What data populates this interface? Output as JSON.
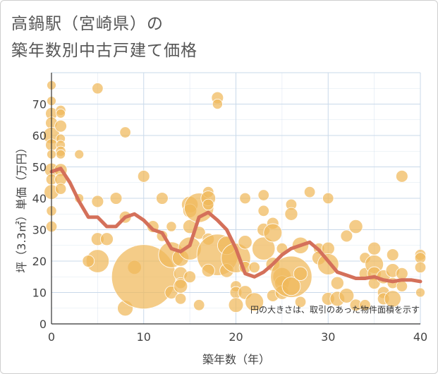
{
  "page": {
    "title_line1": "高鍋駅（宮崎県）の",
    "title_line2": "築年数別中古戸建て価格"
  },
  "chart_data": {
    "type": "scatter",
    "title": "高鍋駅（宮崎県）の築年数別中古戸建て価格",
    "xlabel": "築年数（年）",
    "ylabel": "坪（3.3㎡）単価（万円）",
    "xlim": [
      0,
      40
    ],
    "ylim": [
      0,
      80
    ],
    "xticks": [
      0,
      10,
      20,
      30,
      40
    ],
    "yticks": [
      0,
      10,
      20,
      30,
      40,
      50,
      60,
      70
    ],
    "grid": true,
    "note": "円の大きさは、取引のあった物件面積を示す",
    "colors": {
      "bubble": "#f0b85a",
      "line": "#d4705a",
      "grid": "#c9d9ea"
    },
    "points": [
      {
        "x": 0,
        "y": 76,
        "s": 1
      },
      {
        "x": 0,
        "y": 71,
        "s": 1
      },
      {
        "x": 0,
        "y": 67,
        "s": 1.3
      },
      {
        "x": 0,
        "y": 64,
        "s": 1.3
      },
      {
        "x": 0,
        "y": 60,
        "s": 1.8
      },
      {
        "x": 0,
        "y": 57,
        "s": 1.3
      },
      {
        "x": 0,
        "y": 54,
        "s": 1
      },
      {
        "x": 0,
        "y": 49,
        "s": 1.5
      },
      {
        "x": 0,
        "y": 46,
        "s": 1.2
      },
      {
        "x": 0,
        "y": 42,
        "s": 1.6
      },
      {
        "x": 0,
        "y": 36,
        "s": 1.1
      },
      {
        "x": 0,
        "y": 31,
        "s": 1.2
      },
      {
        "x": 1,
        "y": 68,
        "s": 1.1
      },
      {
        "x": 1,
        "y": 67,
        "s": 1
      },
      {
        "x": 1,
        "y": 63,
        "s": 1.3
      },
      {
        "x": 1,
        "y": 59,
        "s": 1
      },
      {
        "x": 1,
        "y": 57,
        "s": 1
      },
      {
        "x": 1,
        "y": 55,
        "s": 1.1
      },
      {
        "x": 1,
        "y": 54,
        "s": 1
      },
      {
        "x": 1,
        "y": 49,
        "s": 1.4
      },
      {
        "x": 1,
        "y": 46,
        "s": 1.3
      },
      {
        "x": 1,
        "y": 43,
        "s": 1.2
      },
      {
        "x": 3,
        "y": 54,
        "s": 1
      },
      {
        "x": 3,
        "y": 40,
        "s": 1
      },
      {
        "x": 5,
        "y": 75,
        "s": 1.2
      },
      {
        "x": 5,
        "y": 39,
        "s": 1.3
      },
      {
        "x": 5,
        "y": 27,
        "s": 1.4
      },
      {
        "x": 5,
        "y": 20,
        "s": 2.5
      },
      {
        "x": 4,
        "y": 20,
        "s": 1.3
      },
      {
        "x": 6,
        "y": 27,
        "s": 1.4
      },
      {
        "x": 7,
        "y": 40,
        "s": 1.3
      },
      {
        "x": 8,
        "y": 61,
        "s": 1.2
      },
      {
        "x": 8,
        "y": 34,
        "s": 1.3
      },
      {
        "x": 9,
        "y": 18,
        "s": 1.5
      },
      {
        "x": 8,
        "y": 5,
        "s": 1.7
      },
      {
        "x": 10,
        "y": 47,
        "s": 1.3
      },
      {
        "x": 10,
        "y": 15,
        "s": 7
      },
      {
        "x": 11,
        "y": 31,
        "s": 1.3
      },
      {
        "x": 12,
        "y": 40,
        "s": 1.3
      },
      {
        "x": 12,
        "y": 28,
        "s": 1.2
      },
      {
        "x": 13,
        "y": 31,
        "s": 1.1
      },
      {
        "x": 13,
        "y": 22,
        "s": 2.8
      },
      {
        "x": 13,
        "y": 10,
        "s": 1.4
      },
      {
        "x": 14,
        "y": 21,
        "s": 1.8
      },
      {
        "x": 14,
        "y": 16,
        "s": 1.5
      },
      {
        "x": 14,
        "y": 13,
        "s": 1.2
      },
      {
        "x": 14,
        "y": 12,
        "s": 1.5
      },
      {
        "x": 14,
        "y": 8,
        "s": 1.2
      },
      {
        "x": 15,
        "y": 38,
        "s": 1.8
      },
      {
        "x": 15,
        "y": 36,
        "s": 1.5
      },
      {
        "x": 15,
        "y": 31,
        "s": 1.5
      },
      {
        "x": 15,
        "y": 24,
        "s": 2.5
      },
      {
        "x": 15,
        "y": 15,
        "s": 1.3
      },
      {
        "x": 16,
        "y": 37,
        "s": 3.2
      },
      {
        "x": 16,
        "y": 29,
        "s": 1.4
      },
      {
        "x": 16,
        "y": 6,
        "s": 1.2
      },
      {
        "x": 17,
        "y": 42,
        "s": 1.2
      },
      {
        "x": 17,
        "y": 40,
        "s": 1.6
      },
      {
        "x": 17,
        "y": 38,
        "s": 1.2
      },
      {
        "x": 17,
        "y": 27,
        "s": 1.3
      },
      {
        "x": 18,
        "y": 72,
        "s": 1.3
      },
      {
        "x": 18,
        "y": 70,
        "s": 1.1
      },
      {
        "x": 18,
        "y": 22,
        "s": 4.5
      },
      {
        "x": 17,
        "y": 17,
        "s": 1.4
      },
      {
        "x": 19,
        "y": 25,
        "s": 2
      },
      {
        "x": 19,
        "y": 17,
        "s": 1.5
      },
      {
        "x": 20,
        "y": 21,
        "s": 3.2
      },
      {
        "x": 20,
        "y": 12,
        "s": 1.2
      },
      {
        "x": 20,
        "y": 10,
        "s": 1.3
      },
      {
        "x": 20,
        "y": 6,
        "s": 1.6
      },
      {
        "x": 21,
        "y": 40,
        "s": 1.2
      },
      {
        "x": 21,
        "y": 26,
        "s": 1.5
      },
      {
        "x": 21,
        "y": 18,
        "s": 1.3
      },
      {
        "x": 21,
        "y": 10,
        "s": 1.5
      },
      {
        "x": 22,
        "y": 18,
        "s": 1.2
      },
      {
        "x": 22,
        "y": 7,
        "s": 2
      },
      {
        "x": 23,
        "y": 41,
        "s": 1.2
      },
      {
        "x": 23,
        "y": 36,
        "s": 1.2
      },
      {
        "x": 23,
        "y": 30,
        "s": 1.4
      },
      {
        "x": 23,
        "y": 24,
        "s": 2.5
      },
      {
        "x": 24,
        "y": 32,
        "s": 1.3
      },
      {
        "x": 24,
        "y": 29,
        "s": 2
      },
      {
        "x": 24,
        "y": 19,
        "s": 1.5
      },
      {
        "x": 24,
        "y": 9,
        "s": 1.3
      },
      {
        "x": 25,
        "y": 24,
        "s": 1.2
      },
      {
        "x": 25,
        "y": 15,
        "s": 2
      },
      {
        "x": 25,
        "y": 13,
        "s": 1.6
      },
      {
        "x": 25,
        "y": 10,
        "s": 1.5
      },
      {
        "x": 26,
        "y": 38,
        "s": 1.2
      },
      {
        "x": 26,
        "y": 35,
        "s": 1.4
      },
      {
        "x": 26,
        "y": 15,
        "s": 4.5
      },
      {
        "x": 26,
        "y": 12,
        "s": 2
      },
      {
        "x": 27,
        "y": 25,
        "s": 1.8
      },
      {
        "x": 27,
        "y": 16,
        "s": 1.5
      },
      {
        "x": 27,
        "y": 7,
        "s": 1.2
      },
      {
        "x": 28,
        "y": 42,
        "s": 1.2
      },
      {
        "x": 29,
        "y": 24,
        "s": 1.2
      },
      {
        "x": 29,
        "y": 21,
        "s": 1.5
      },
      {
        "x": 30,
        "y": 40,
        "s": 1.2
      },
      {
        "x": 30,
        "y": 24,
        "s": 1.4
      },
      {
        "x": 30,
        "y": 19,
        "s": 2.3
      },
      {
        "x": 30,
        "y": 8,
        "s": 1.4
      },
      {
        "x": 31,
        "y": 13,
        "s": 1.4
      },
      {
        "x": 31,
        "y": 8,
        "s": 1.6
      },
      {
        "x": 32,
        "y": 28,
        "s": 1.3
      },
      {
        "x": 32,
        "y": 9,
        "s": 1.6
      },
      {
        "x": 33,
        "y": 31,
        "s": 1.5
      },
      {
        "x": 33,
        "y": 6,
        "s": 1.3
      },
      {
        "x": 34,
        "y": 21,
        "s": 1.2
      },
      {
        "x": 34,
        "y": 16,
        "s": 1.3
      },
      {
        "x": 34,
        "y": 6,
        "s": 1.2
      },
      {
        "x": 35,
        "y": 24,
        "s": 1.4
      },
      {
        "x": 35,
        "y": 19,
        "s": 2
      },
      {
        "x": 35,
        "y": 16,
        "s": 1.5
      },
      {
        "x": 35,
        "y": 13,
        "s": 1.3
      },
      {
        "x": 36,
        "y": 15,
        "s": 1.5
      },
      {
        "x": 36,
        "y": 10,
        "s": 1.3
      },
      {
        "x": 36,
        "y": 8,
        "s": 1.3
      },
      {
        "x": 37,
        "y": 22,
        "s": 1.3
      },
      {
        "x": 37,
        "y": 17,
        "s": 1.5
      },
      {
        "x": 37,
        "y": 13,
        "s": 1.2
      },
      {
        "x": 37,
        "y": 8,
        "s": 1.8
      },
      {
        "x": 38,
        "y": 47,
        "s": 1.3
      },
      {
        "x": 38,
        "y": 16,
        "s": 1.3
      },
      {
        "x": 38,
        "y": 12,
        "s": 1.2
      },
      {
        "x": 40,
        "y": 22,
        "s": 1.2
      },
      {
        "x": 40,
        "y": 21,
        "s": 1.2
      },
      {
        "x": 40,
        "y": 18,
        "s": 1.2
      },
      {
        "x": 40,
        "y": 10,
        "s": 1
      }
    ],
    "trend": [
      [
        0,
        48.5
      ],
      [
        1,
        49.5
      ],
      [
        2,
        45
      ],
      [
        3,
        39
      ],
      [
        4,
        34
      ],
      [
        5,
        34
      ],
      [
        6,
        31
      ],
      [
        7,
        31
      ],
      [
        8,
        34
      ],
      [
        9,
        35
      ],
      [
        10,
        33
      ],
      [
        11,
        30
      ],
      [
        12,
        29
      ],
      [
        13,
        24
      ],
      [
        14,
        23
      ],
      [
        15,
        25
      ],
      [
        16,
        34
      ],
      [
        17,
        35.5
      ],
      [
        18,
        33
      ],
      [
        19,
        30
      ],
      [
        20,
        24
      ],
      [
        21,
        16
      ],
      [
        22,
        15
      ],
      [
        23,
        16.5
      ],
      [
        24,
        19
      ],
      [
        25,
        22
      ],
      [
        26,
        24
      ],
      [
        27,
        25
      ],
      [
        28,
        26
      ],
      [
        29,
        23.5
      ],
      [
        30,
        20
      ],
      [
        31,
        16.5
      ],
      [
        32,
        15.5
      ],
      [
        33,
        14.5
      ],
      [
        34,
        14.5
      ],
      [
        35,
        15
      ],
      [
        36,
        14
      ],
      [
        37,
        13.5
      ],
      [
        38,
        14
      ],
      [
        39,
        14
      ],
      [
        40,
        13.5
      ]
    ]
  }
}
